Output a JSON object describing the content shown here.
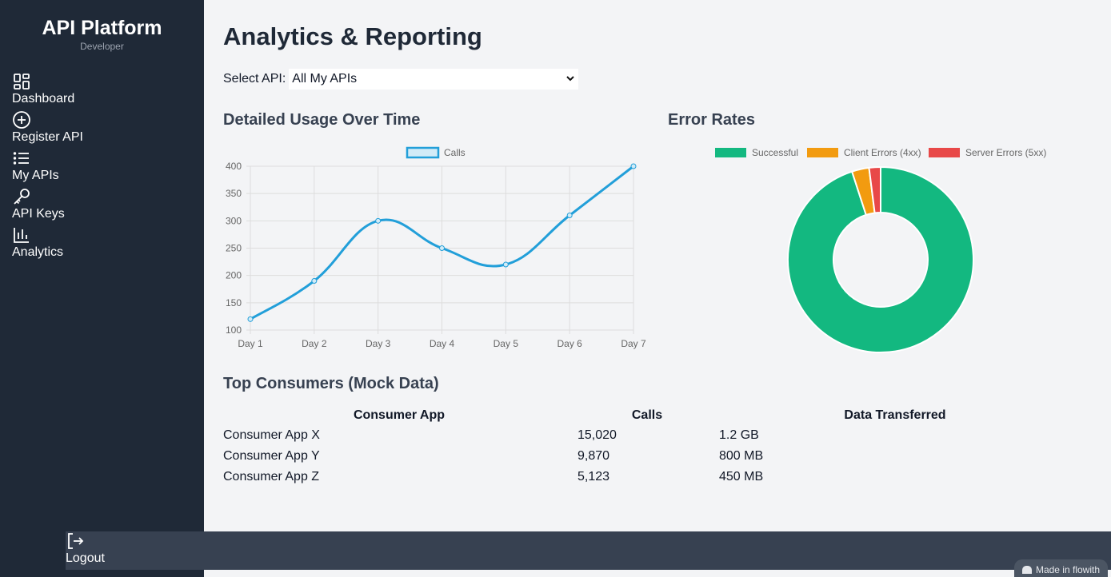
{
  "sidebar": {
    "brand": "API Platform",
    "role": "Developer",
    "items": [
      {
        "label": "Dashboard",
        "icon": "grid-icon"
      },
      {
        "label": "Register API",
        "icon": "plus-circle-icon"
      },
      {
        "label": "My APIs",
        "icon": "list-icon"
      },
      {
        "label": "API Keys",
        "icon": "key-icon"
      },
      {
        "label": "Analytics",
        "icon": "bar-chart-icon"
      }
    ],
    "logout": "Logout"
  },
  "main": {
    "title": "Analytics & Reporting",
    "select_label": "Select API:",
    "select_value": "All My APIs",
    "usage_title": "Detailed Usage Over Time",
    "errors_title": "Error Rates",
    "consumers_title": "Top Consumers (Mock Data)",
    "table": {
      "headers": [
        "Consumer App",
        "Calls",
        "Data Transferred"
      ],
      "rows": [
        [
          "Consumer App X",
          "15,020",
          "1.2 GB"
        ],
        [
          "Consumer App Y",
          "9,870",
          "800 MB"
        ],
        [
          "Consumer App Z",
          "5,123",
          "450 MB"
        ]
      ]
    }
  },
  "watermark": "Made in flowith",
  "colors": {
    "sidebar_bg": "#1f2937",
    "line": "#229fd9",
    "successful": "#13b880",
    "client_errors": "#f29b10",
    "server_errors": "#e84848"
  },
  "chart_data": [
    {
      "type": "line",
      "categories": [
        "Day 1",
        "Day 2",
        "Day 3",
        "Day 4",
        "Day 5",
        "Day 6",
        "Day 7"
      ],
      "series": [
        {
          "name": "Calls",
          "values": [
            120,
            190,
            300,
            250,
            220,
            310,
            400
          ]
        }
      ],
      "ylim": [
        100,
        400
      ],
      "yticks": [
        100,
        150,
        200,
        250,
        300,
        350,
        400
      ],
      "grid": true,
      "legend": "top"
    },
    {
      "type": "pie",
      "labels": [
        "Successful",
        "Client Errors (4xx)",
        "Server Errors (5xx)"
      ],
      "values": [
        95,
        3,
        2
      ],
      "donut": true,
      "legend": "top"
    }
  ]
}
